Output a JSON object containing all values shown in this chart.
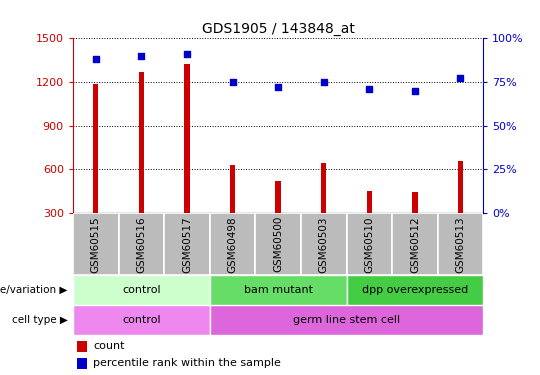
{
  "title": "GDS1905 / 143848_at",
  "samples": [
    "GSM60515",
    "GSM60516",
    "GSM60517",
    "GSM60498",
    "GSM60500",
    "GSM60503",
    "GSM60510",
    "GSM60512",
    "GSM60513"
  ],
  "counts": [
    1185,
    1270,
    1320,
    630,
    520,
    640,
    450,
    445,
    660
  ],
  "percentiles": [
    88,
    90,
    91,
    75,
    72,
    75,
    71,
    70,
    77
  ],
  "ylim_left": [
    300,
    1500
  ],
  "ylim_right": [
    0,
    100
  ],
  "yticks_left": [
    300,
    600,
    900,
    1200,
    1500
  ],
  "yticks_right": [
    0,
    25,
    50,
    75,
    100
  ],
  "bar_color": "#cc0000",
  "dot_color": "#0000cc",
  "genotype_groups": [
    {
      "label": "control",
      "start": 0,
      "end": 3,
      "color": "#ccffcc"
    },
    {
      "label": "bam mutant",
      "start": 3,
      "end": 6,
      "color": "#66dd66"
    },
    {
      "label": "dpp overexpressed",
      "start": 6,
      "end": 9,
      "color": "#44cc44"
    }
  ],
  "celltype_groups": [
    {
      "label": "control",
      "start": 0,
      "end": 3,
      "color": "#ee88ee"
    },
    {
      "label": "germ line stem cell",
      "start": 3,
      "end": 9,
      "color": "#dd66dd"
    }
  ],
  "left_axis_color": "#cc0000",
  "right_axis_color": "#0000cc",
  "tick_bg_color": "#bbbbbb",
  "bar_width": 0.12,
  "dot_size": 18,
  "label_fontsize": 7.5,
  "annotation_fontsize": 8,
  "title_fontsize": 10
}
